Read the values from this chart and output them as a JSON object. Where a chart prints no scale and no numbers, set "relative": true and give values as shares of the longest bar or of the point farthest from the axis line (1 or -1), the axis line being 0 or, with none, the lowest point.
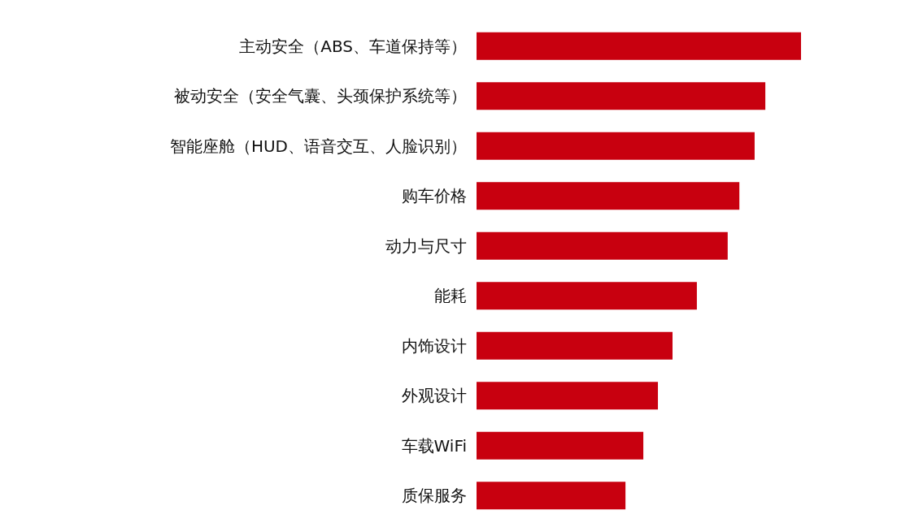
{
  "chart_data": {
    "type": "bar",
    "orientation": "horizontal",
    "relative": true,
    "color": "#c8000f",
    "categories": [
      "主动安全（ABS、车道保持等）",
      "被动安全（安全气囊、头颈保护系统等）",
      "智能座舱（HUD、语音交互、人脸识别）",
      "购车价格",
      "动力与尺寸",
      "能耗",
      "内饰设计",
      "外观设计",
      "车载WiFi",
      "质保服务"
    ],
    "values": [
      1,
      0.89,
      0.857,
      0.81,
      0.774,
      0.679,
      0.604,
      0.559,
      0.514,
      0.459
    ]
  }
}
